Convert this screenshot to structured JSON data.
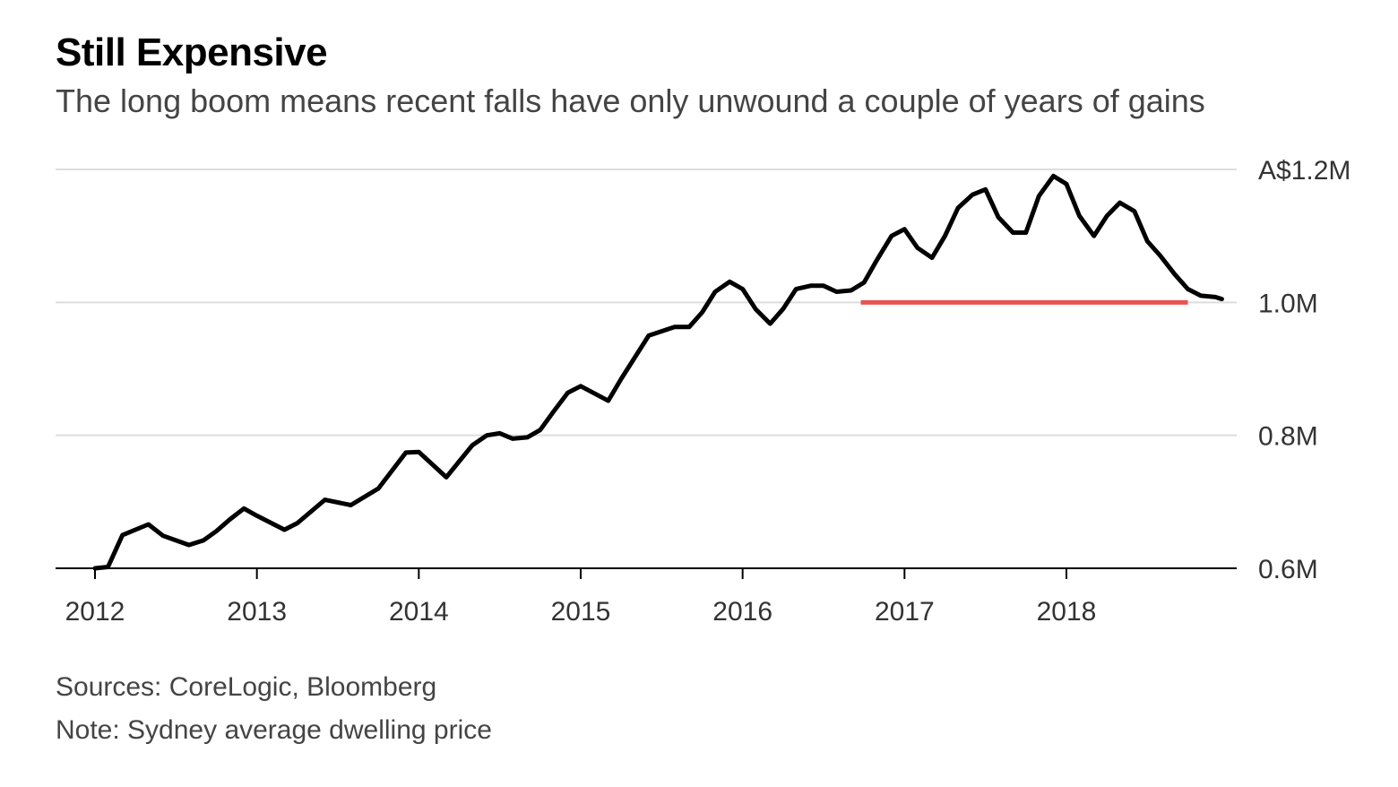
{
  "chart_data": {
    "type": "line",
    "title": "Still Expensive",
    "subtitle": "The long boom means recent falls have only unwound a couple of years of gains",
    "xlabel": "",
    "ylabel": "",
    "x_ticks": [
      "2012",
      "2013",
      "2014",
      "2015",
      "2016",
      "2017",
      "2018"
    ],
    "y_ticks": [
      {
        "value": 0.6,
        "label": "0.6M"
      },
      {
        "value": 0.8,
        "label": "0.8M"
      },
      {
        "value": 1.0,
        "label": "1.0M"
      },
      {
        "value": 1.2,
        "label": "A$1.2M"
      }
    ],
    "xlim": [
      2011.97,
      2019.0
    ],
    "ylim": [
      0.6,
      1.2
    ],
    "grid": true,
    "colors": {
      "line": "#000000",
      "reference": "#e8534f",
      "grid": "#dddddd",
      "axis": "#000000"
    },
    "series": [
      {
        "x": [
          2012.0,
          2012.08,
          2012.17,
          2012.33,
          2012.42,
          2012.58,
          2012.67,
          2012.75,
          2012.83,
          2012.92,
          2013.0,
          2013.17,
          2013.25,
          2013.42,
          2013.58,
          2013.75,
          2013.92,
          2014.0,
          2014.17,
          2014.33,
          2014.42,
          2014.5,
          2014.58,
          2014.67,
          2014.75,
          2014.83,
          2014.92,
          2015.0,
          2015.17,
          2015.25,
          2015.42,
          2015.58,
          2015.67,
          2015.75,
          2015.83,
          2015.92,
          2016.0,
          2016.08,
          2016.17,
          2016.25,
          2016.33,
          2016.42,
          2016.5,
          2016.58,
          2016.67,
          2016.75,
          2016.83,
          2016.92,
          2017.0,
          2017.08,
          2017.17,
          2017.25,
          2017.33,
          2017.42,
          2017.5,
          2017.58,
          2017.67,
          2017.75,
          2017.83,
          2017.92,
          2018.0,
          2018.08,
          2018.17,
          2018.25,
          2018.33,
          2018.42,
          2018.5,
          2018.58,
          2018.67,
          2018.75,
          2018.83,
          2018.92,
          2018.96
        ],
        "y": [
          0.6,
          0.602,
          0.65,
          0.666,
          0.649,
          0.635,
          0.642,
          0.656,
          0.673,
          0.69,
          0.679,
          0.658,
          0.668,
          0.703,
          0.695,
          0.72,
          0.774,
          0.775,
          0.737,
          0.785,
          0.8,
          0.803,
          0.795,
          0.797,
          0.808,
          0.835,
          0.864,
          0.874,
          0.852,
          0.885,
          0.95,
          0.963,
          0.963,
          0.985,
          1.016,
          1.031,
          1.02,
          0.99,
          0.968,
          0.99,
          1.02,
          1.025,
          1.025,
          1.016,
          1.018,
          1.03,
          1.064,
          1.1,
          1.11,
          1.082,
          1.067,
          1.1,
          1.142,
          1.162,
          1.17,
          1.128,
          1.105,
          1.105,
          1.16,
          1.19,
          1.178,
          1.13,
          1.1,
          1.13,
          1.15,
          1.137,
          1.092,
          1.07,
          1.042,
          1.02,
          1.01,
          1.008,
          1.005
        ]
      }
    ],
    "reference_line": {
      "y": 1.0,
      "x_start": 2016.73,
      "x_end": 2018.75
    },
    "sources": "Sources: CoreLogic, Bloomberg",
    "note": "Note: Sydney average dwelling price"
  }
}
